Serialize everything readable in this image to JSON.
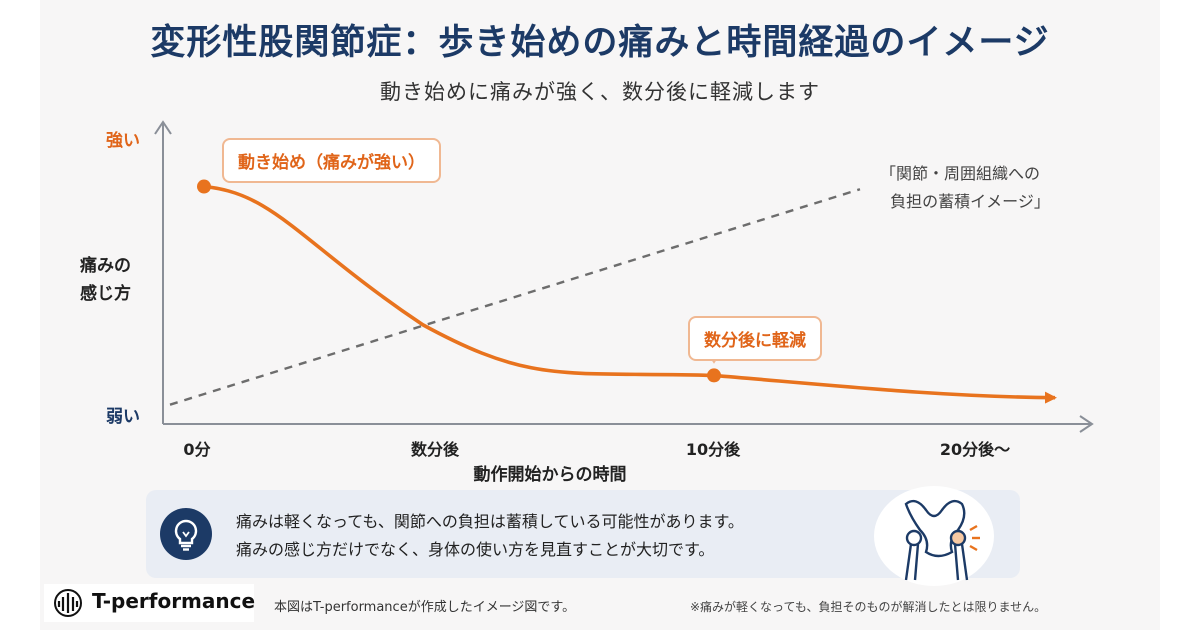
{
  "title": "変形性股関節症：歩き始めの痛みと時間経過のイメージ",
  "subtitle": "動き始めに痛みが強く、数分後に軽減します",
  "chart_data": {
    "type": "line",
    "y_axis": {
      "label_line1": "痛みの",
      "label_line2": "感じ方",
      "top_label": "強い",
      "bottom_label": "弱い",
      "range": [
        0,
        1
      ]
    },
    "x_axis": {
      "label": "動作開始からの時間",
      "ticks": [
        "0分",
        "数分後",
        "10分後",
        "20分後〜"
      ]
    },
    "series": [
      {
        "values": [
          {
            "x": "0分",
            "y": 0.84
          },
          {
            "x": "数分後",
            "y": 0.32
          },
          {
            "x": "10分後",
            "y": 0.13
          },
          {
            "x": "20分後〜",
            "y": 0.05
          }
        ],
        "color": "#e8731e",
        "style": "solid"
      },
      {
        "values": [
          {
            "x": "0分",
            "y": 0.02
          },
          {
            "x": "数分後",
            "y": 0.32
          },
          {
            "x": "10分後",
            "y": 0.62
          },
          {
            "x": "20分後〜",
            "y": 0.83
          }
        ],
        "color": "#6d6d6d",
        "style": "dashed"
      }
    ],
    "annotations": {
      "start": "動き始め（痛みが強い）",
      "mid": "数分後に軽減",
      "trend": "「関節・周囲組織への\n  負担の蓄積イメージ」"
    }
  },
  "note": {
    "line1": "痛みは軽くなっても、関節への負担は蓄積している可能性があります。",
    "line2": "痛みの感じ方だけでなく、身体の使い方を見直すことが大切です。",
    "icon": "lightbulb-icon"
  },
  "hip_icon": "hip-joint-icon",
  "footer": {
    "logo": "T-performance",
    "left": "本図はT-performanceが作成したイメージ図です。",
    "right": "※痛みが軽くなっても、負担そのものが解消したとは限りません。"
  },
  "colors": {
    "navy": "#1c3a66",
    "orange": "#e0651a",
    "axis": "#8a8f98"
  }
}
